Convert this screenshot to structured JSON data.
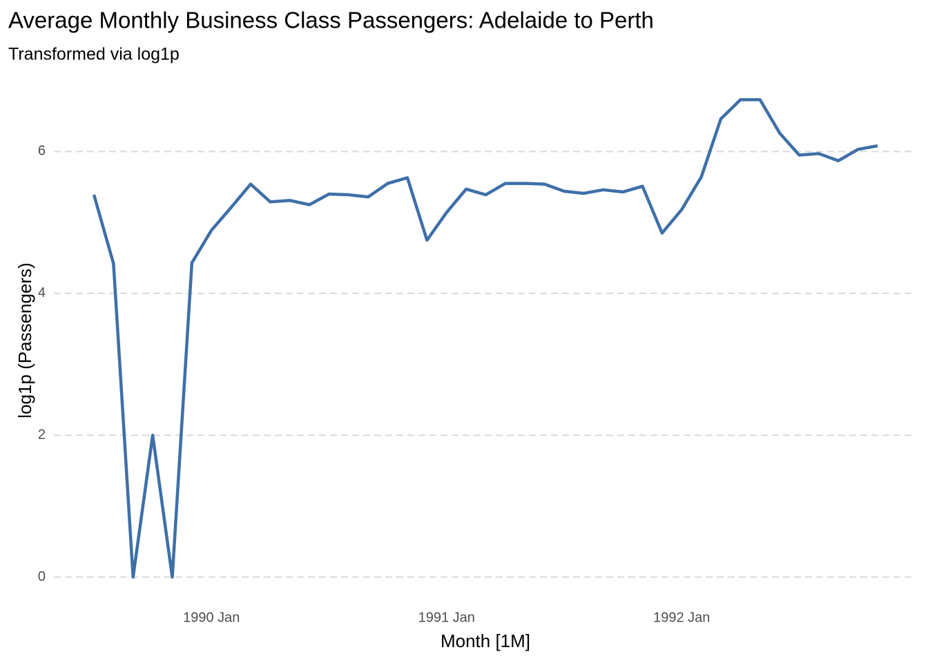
{
  "chart_data": {
    "type": "line",
    "title": "Average Monthly Business Class Passengers: Adelaide to Perth",
    "subtitle": "Transformed via log1p",
    "x_label": "Month [1M]",
    "y_label": "log1p (Passengers)",
    "x": [
      "1989 Jul",
      "1989 Aug",
      "1989 Sep",
      "1989 Oct",
      "1989 Nov",
      "1989 Dec",
      "1990 Jan",
      "1990 Feb",
      "1990 Mar",
      "1990 Apr",
      "1990 May",
      "1990 Jun",
      "1990 Jul",
      "1990 Aug",
      "1990 Sep",
      "1990 Oct",
      "1990 Nov",
      "1990 Dec",
      "1991 Jan",
      "1991 Feb",
      "1991 Mar",
      "1991 Apr",
      "1991 May",
      "1991 Jun",
      "1991 Jul",
      "1991 Aug",
      "1991 Sep",
      "1991 Oct",
      "1991 Nov",
      "1991 Dec",
      "1992 Jan",
      "1992 Feb",
      "1992 Mar",
      "1992 Apr",
      "1992 May",
      "1992 Jun",
      "1992 Jul",
      "1992 Aug",
      "1992 Sep",
      "1992 Oct",
      "1992 Nov"
    ],
    "series": [
      {
        "name": "log1p (Passengers)",
        "color": "#3e6fa8",
        "values": [
          5.39,
          4.42,
          0,
          2.0,
          0,
          4.43,
          4.89,
          5.21,
          5.54,
          5.29,
          5.31,
          5.25,
          5.4,
          5.39,
          5.36,
          5.55,
          5.63,
          4.75,
          5.14,
          5.47,
          5.39,
          5.55,
          5.55,
          5.54,
          5.44,
          5.41,
          5.46,
          5.43,
          5.51,
          4.85,
          5.18,
          5.64,
          6.46,
          6.73,
          6.73,
          6.26,
          5.95,
          5.97,
          5.87,
          6.03,
          6.08
        ]
      }
    ],
    "xticks": [
      "1990 Jan",
      "1991 Jan",
      "1992 Jan"
    ],
    "ylim": [
      -0.14,
      6.87
    ],
    "yticks": [
      0,
      2,
      4,
      6
    ],
    "grid": true
  }
}
